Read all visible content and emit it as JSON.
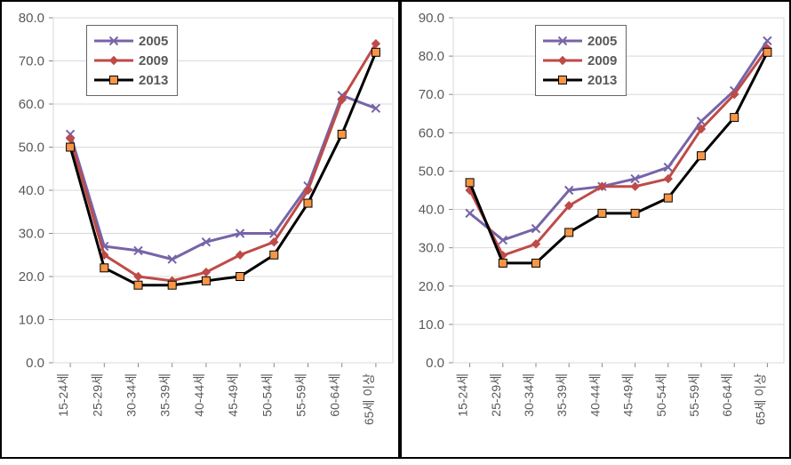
{
  "categories": [
    "15-24세",
    "25-29세",
    "30-34세",
    "35-39세",
    "40-44세",
    "45-49세",
    "50-54세",
    "55-59세",
    "60-64세",
    "65세 이상"
  ],
  "legend": {
    "box_border": "#666666",
    "entries": [
      {
        "label": "2005",
        "color": "#7664a8",
        "marker": "x"
      },
      {
        "label": "2009",
        "color": "#be4b48",
        "marker": "diamond"
      },
      {
        "label": "2013",
        "color": "#000000",
        "marker": "square",
        "marker_fill": "#f79646"
      }
    ],
    "fontsize": 15
  },
  "panel_border_color": "#000000",
  "grid_color": "#d9d9d9",
  "tick_color": "#888888",
  "tick_label_color": "#595959",
  "tick_fontsize_y": 15,
  "tick_fontsize_x": 14,
  "left": {
    "ylim": [
      0,
      80
    ],
    "ytick_step": 10,
    "series": {
      "2005": [
        53,
        27,
        26,
        24,
        28,
        30,
        30,
        41,
        62,
        59
      ],
      "2009": [
        52,
        25,
        20,
        19,
        21,
        25,
        28,
        40,
        61,
        74
      ],
      "2013": [
        50,
        22,
        18,
        18,
        19,
        20,
        25,
        37,
        53,
        72
      ]
    }
  },
  "right": {
    "ylim": [
      0,
      90
    ],
    "ytick_step": 10,
    "series": {
      "2005": [
        39,
        32,
        35,
        45,
        46,
        48,
        51,
        63,
        71,
        84
      ],
      "2009": [
        45,
        28,
        31,
        41,
        46,
        46,
        48,
        61,
        70,
        82
      ],
      "2013": [
        47,
        26,
        26,
        34,
        39,
        39,
        43,
        54,
        64,
        81
      ]
    }
  },
  "line_width": 3,
  "marker_size": 9
}
